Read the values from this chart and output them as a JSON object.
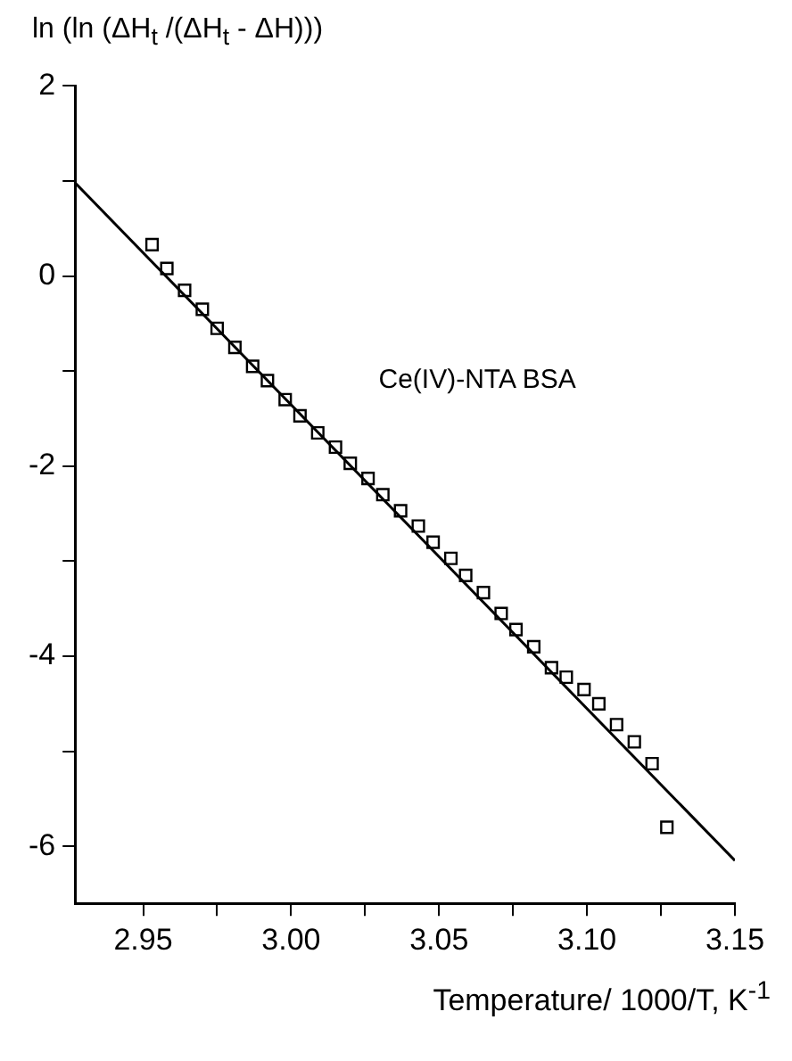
{
  "chart_data": {
    "type": "scatter",
    "xlabel": "Temperature/ 1000/T, K$^{-1}$",
    "ylabel": "ln (ln (ΔH$_{t}$ /(ΔH$_{t}$ - ΔH)))",
    "xlim": [
      2.927,
      3.15
    ],
    "xticks": [
      2.95,
      {
        "value": 2.975,
        "label": null
      },
      "3.00",
      {
        "value": 3.025,
        "label": null
      },
      3.05,
      {
        "value": 3.075,
        "label": null
      },
      "3.10",
      {
        "value": 3.125,
        "label": null
      },
      3.15
    ],
    "ylim": [
      -6.6,
      2
    ],
    "yticks": [
      {
        "value": -6,
        "label": "-6"
      },
      {
        "value": -5,
        "label": null
      },
      {
        "value": -4,
        "label": "-4"
      },
      {
        "value": -3,
        "label": null
      },
      {
        "value": -2,
        "label": "-2"
      },
      {
        "value": -1,
        "label": null
      },
      0,
      {
        "value": 1,
        "label": null
      },
      2
    ],
    "grid": false,
    "legend": false,
    "series": [
      {
        "name": "Ce(IV)-NTA BSA",
        "marker": "square",
        "color": "#000000",
        "x": [
          2.953,
          2.958,
          2.964,
          2.97,
          2.975,
          2.981,
          2.987,
          2.992,
          2.998,
          3.003,
          3.009,
          3.015,
          3.02,
          3.026,
          3.031,
          3.037,
          3.043,
          3.048,
          3.054,
          3.059,
          3.065,
          3.071,
          3.076,
          3.082,
          3.088,
          3.093,
          3.099,
          3.104,
          3.11,
          3.116,
          3.122,
          3.127
        ],
        "values": [
          0.33,
          0.08,
          -0.15,
          -0.35,
          -0.55,
          -0.75,
          -0.95,
          -1.1,
          -1.3,
          -1.47,
          -1.65,
          -1.8,
          -1.97,
          -2.13,
          -2.3,
          -2.47,
          -2.63,
          -2.8,
          -2.97,
          -3.15,
          -3.33,
          -3.55,
          -3.72,
          -3.9,
          -4.12,
          -4.22,
          -4.35,
          -4.5,
          -4.72,
          -4.9,
          -5.13,
          -5.8
        ]
      },
      {
        "type": "line",
        "marker": "none",
        "line_style": "solid",
        "color": "#000000",
        "x": [
          2.927,
          3.15
        ],
        "values": [
          0.98,
          -6.15
        ]
      }
    ]
  }
}
